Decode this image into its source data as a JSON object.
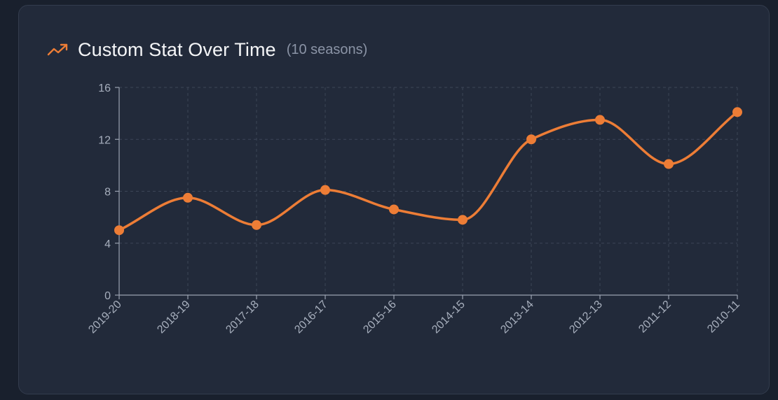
{
  "header": {
    "title": "Custom Stat Over Time",
    "subtitle": "(10 seasons)",
    "icon": "trending-up-icon"
  },
  "colors": {
    "background": "#19202d",
    "card": "#222a3a",
    "series": "#ed7d36",
    "grid": "#3c4557",
    "axis": "#9aa2b1"
  },
  "chart_data": {
    "type": "line",
    "categories": [
      "2019-20",
      "2018-19",
      "2017-18",
      "2016-17",
      "2015-16",
      "2014-15",
      "2013-14",
      "2012-13",
      "2011-12",
      "2010-11"
    ],
    "series": [
      {
        "values": [
          5.0,
          7.5,
          5.4,
          8.1,
          6.6,
          5.8,
          12.0,
          13.5,
          10.1,
          14.1
        ]
      }
    ],
    "ylim": [
      0,
      16
    ],
    "yticks": [
      0,
      4,
      8,
      12,
      16
    ],
    "grid": true,
    "curve": "smooth",
    "xlabel": "",
    "ylabel": ""
  }
}
